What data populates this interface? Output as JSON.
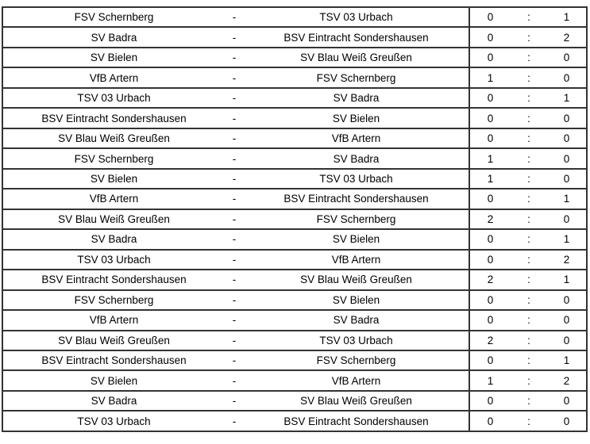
{
  "page": {
    "background": "#ffffff"
  },
  "table": {
    "border_color": "#333333",
    "separator": "-",
    "score_separator": ":",
    "matches": [
      {
        "home": "FSV Schernberg",
        "away": "TSV 03 Urbach",
        "home_score": "0",
        "away_score": "1"
      },
      {
        "home": "SV Badra",
        "away": "BSV Eintracht Sondershausen",
        "home_score": "0",
        "away_score": "2"
      },
      {
        "home": "SV Bielen",
        "away": "SV Blau Weiß Greußen",
        "home_score": "0",
        "away_score": "0"
      },
      {
        "home": "VfB Artern",
        "away": "FSV Schernberg",
        "home_score": "1",
        "away_score": "0"
      },
      {
        "home": "TSV 03 Urbach",
        "away": "SV Badra",
        "home_score": "0",
        "away_score": "1"
      },
      {
        "home": "BSV Eintracht Sondershausen",
        "away": "SV Bielen",
        "home_score": "0",
        "away_score": "0"
      },
      {
        "home": "SV Blau Weiß Greußen",
        "away": "VfB Artern",
        "home_score": "0",
        "away_score": "0"
      },
      {
        "home": "FSV Schernberg",
        "away": "SV Badra",
        "home_score": "1",
        "away_score": "0"
      },
      {
        "home": "SV Bielen",
        "away": "TSV 03 Urbach",
        "home_score": "1",
        "away_score": "0"
      },
      {
        "home": "VfB Artern",
        "away": "BSV Eintracht Sondershausen",
        "home_score": "0",
        "away_score": "1"
      },
      {
        "home": "SV Blau Weiß Greußen",
        "away": "FSV Schernberg",
        "home_score": "2",
        "away_score": "0"
      },
      {
        "home": "SV Badra",
        "away": "SV Bielen",
        "home_score": "0",
        "away_score": "1"
      },
      {
        "home": "TSV 03 Urbach",
        "away": "VfB Artern",
        "home_score": "0",
        "away_score": "2"
      },
      {
        "home": "BSV Eintracht Sondershausen",
        "away": "SV Blau Weiß Greußen",
        "home_score": "2",
        "away_score": "1"
      },
      {
        "home": "FSV Schernberg",
        "away": "SV Bielen",
        "home_score": "0",
        "away_score": "0"
      },
      {
        "home": "VfB Artern",
        "away": "SV Badra",
        "home_score": "0",
        "away_score": "0"
      },
      {
        "home": "SV Blau Weiß Greußen",
        "away": "TSV 03 Urbach",
        "home_score": "2",
        "away_score": "0"
      },
      {
        "home": "BSV Eintracht Sondershausen",
        "away": "FSV Schernberg",
        "home_score": "0",
        "away_score": "1"
      },
      {
        "home": "SV Bielen",
        "away": "VfB Artern",
        "home_score": "1",
        "away_score": "2"
      },
      {
        "home": "SV Badra",
        "away": "SV Blau Weiß Greußen",
        "home_score": "0",
        "away_score": "0"
      },
      {
        "home": "TSV 03 Urbach",
        "away": "BSV Eintracht Sondershausen",
        "home_score": "0",
        "away_score": "0"
      }
    ]
  }
}
